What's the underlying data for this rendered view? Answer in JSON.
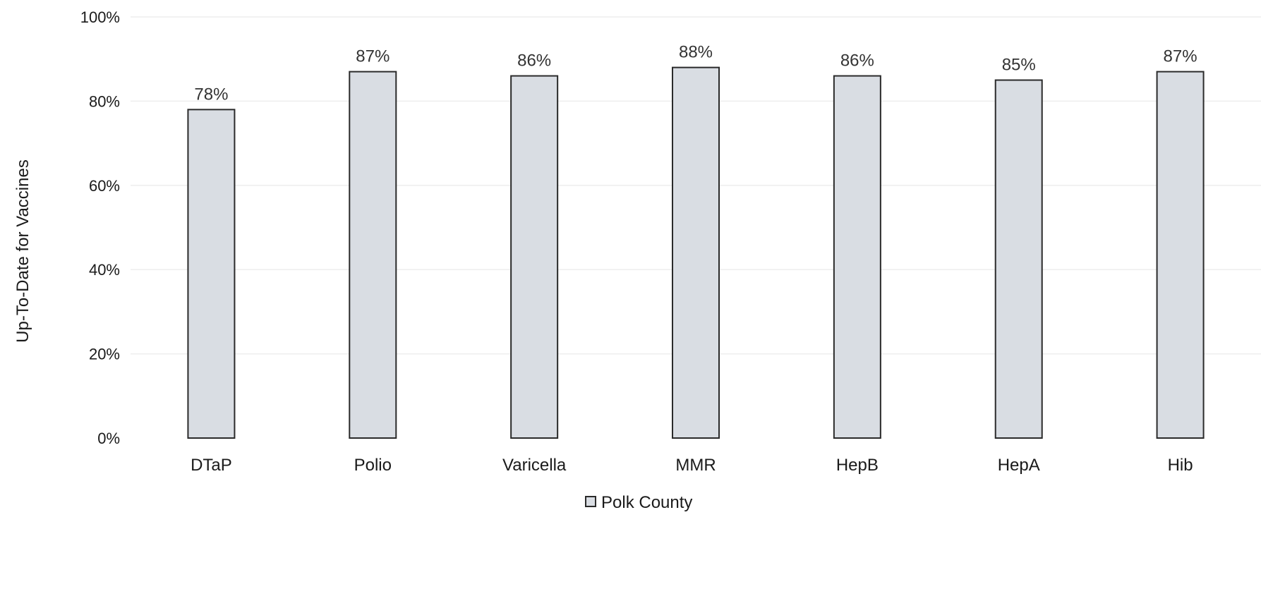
{
  "chart_data": {
    "type": "bar",
    "categories": [
      "DTaP",
      "Polio",
      "Varicella",
      "MMR",
      "HepB",
      "HepA",
      "Hib"
    ],
    "series": [
      {
        "name": "Polk County",
        "values": [
          78,
          87,
          86,
          88,
          86,
          85,
          87
        ],
        "color": "#d9dde3"
      }
    ],
    "data_labels": [
      "78%",
      "87%",
      "86%",
      "88%",
      "86%",
      "85%",
      "87%"
    ],
    "title": "",
    "xlabel": "",
    "ylabel": "Up-To-Date for Vaccines",
    "ylim": [
      0,
      100
    ],
    "yticks": [
      0,
      20,
      40,
      60,
      80,
      100
    ],
    "ytick_labels": [
      "0%",
      "20%",
      "40%",
      "60%",
      "80%",
      "100%"
    ],
    "grid": true,
    "legend_position": "bottom-center",
    "colors": {
      "bar_fill": "#d9dde3",
      "bar_stroke": "#2a2a2a"
    }
  }
}
